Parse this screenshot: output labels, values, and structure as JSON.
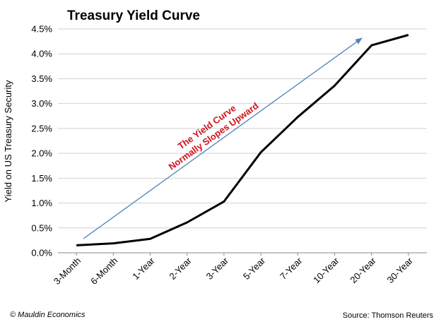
{
  "chart_data": {
    "type": "line",
    "title": "Treasury Yield Curve",
    "ylabel": "Yield on US Treasury  Security",
    "xlabel": "",
    "categories": [
      "3-Month",
      "6-Month",
      "1-Year",
      "2-Year",
      "3-Year",
      "5-Year",
      "7-Year",
      "10-Year",
      "20-Year",
      "30-Year"
    ],
    "series": [
      {
        "values": [
          0.15,
          0.19,
          0.28,
          0.61,
          1.03,
          2.02,
          2.73,
          3.36,
          4.17,
          4.38
        ],
        "color": "#000000"
      }
    ],
    "ylim": [
      0,
      4.5
    ],
    "yticks": [
      0,
      0.5,
      1.0,
      1.5,
      2.0,
      2.5,
      3.0,
      3.5,
      4.0,
      4.5
    ],
    "ytick_labels": [
      "0.0%",
      "0.5%",
      "1.0%",
      "1.5%",
      "2.0%",
      "2.5%",
      "3.0%",
      "3.5%",
      "4.0%",
      "4.5%"
    ],
    "grid": "horizontal",
    "legend": "none",
    "annotation": {
      "lines": [
        "The Yield Curve",
        "Normally Slopes Upward"
      ],
      "color": "#d0121b",
      "arrow_color": "#4f81bd"
    }
  },
  "footer": {
    "credit": "© Mauldin Economics",
    "source": "Source: Thomson Reuters"
  }
}
